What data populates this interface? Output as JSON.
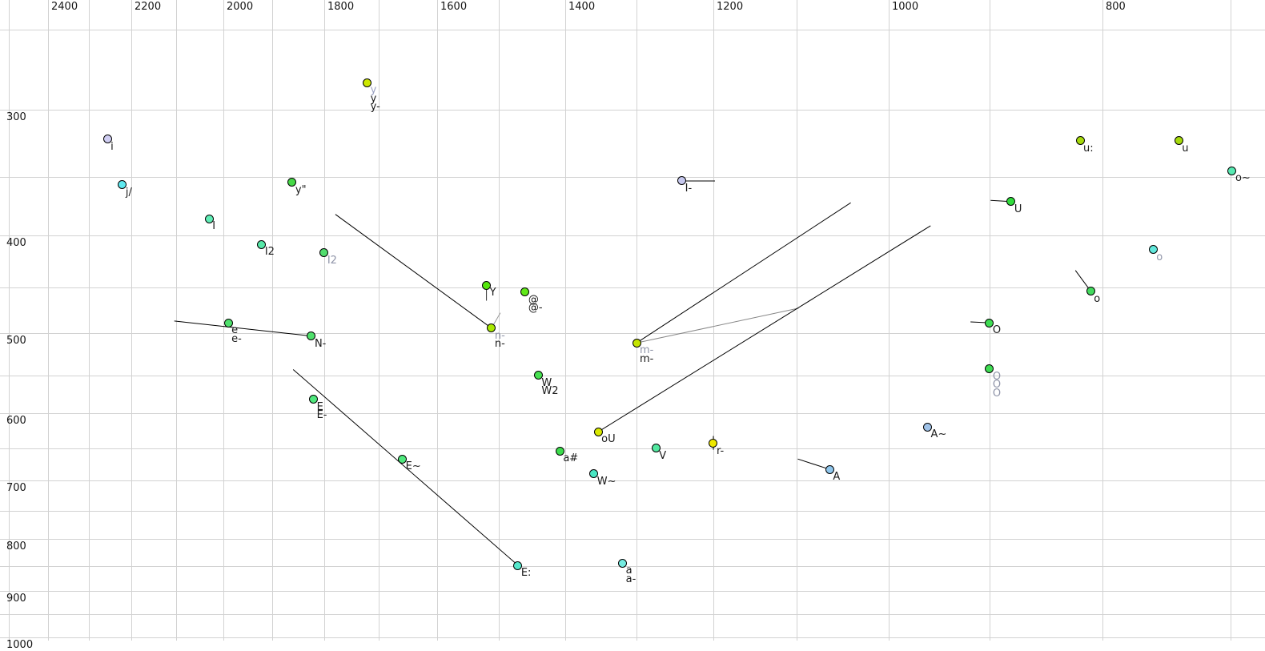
{
  "chart_data": {
    "type": "scatter",
    "title": "",
    "xlabel": "",
    "ylabel": "",
    "x_axis": {
      "ticks": [
        2400,
        2200,
        2000,
        1800,
        1600,
        1400,
        1200,
        1000,
        800
      ],
      "scale": "log",
      "reversed": true,
      "grid_from": 2500,
      "grid_to": 700,
      "grid_step": 100
    },
    "y_axis": {
      "ticks": [
        300,
        400,
        500,
        600,
        700,
        800,
        900,
        1000
      ],
      "scale": "log",
      "reversed": true,
      "grid_from": 250,
      "grid_to": 1000,
      "grid_step": 50
    },
    "grid_color": "#d2d2d2",
    "points": [
      {
        "id": "y",
        "f2": 1721,
        "f1": 282,
        "fill": "#cde800",
        "labels": [
          {
            "text": "y",
            "color": "#9aa0c0"
          },
          {
            "text": "y",
            "color": "#1a1a1a"
          },
          {
            "text": "y-",
            "color": "#1a1a1a"
          }
        ]
      },
      {
        "id": "i",
        "f2": 2256,
        "f1": 321,
        "fill": "#cfcdf2",
        "labels": [
          {
            "text": "i",
            "color": "#1a1a1a"
          }
        ]
      },
      {
        "id": "j/",
        "f2": 2221,
        "f1": 356,
        "fill": "#5fe9ef",
        "labels": [
          {
            "text": "j/",
            "color": "#1a1a1a"
          }
        ]
      },
      {
        "id": "y\"",
        "f2": 1861,
        "f1": 354,
        "fill": "#46d947",
        "labels": [
          {
            "text": "y\"",
            "color": "#1a1a1a"
          }
        ]
      },
      {
        "id": "I",
        "f2": 2029,
        "f1": 385,
        "fill": "#60edb6",
        "labels": [
          {
            "text": "I",
            "color": "#1a1a1a"
          }
        ]
      },
      {
        "id": "I2",
        "f2": 1921,
        "f1": 408,
        "fill": "#57e8a8",
        "labels": [
          {
            "text": "I2",
            "color": "#1a1a1a"
          }
        ]
      },
      {
        "id": "I2-2",
        "f2": 1800,
        "f1": 416,
        "fill": "#52dd6e",
        "labels": [
          {
            "text": "I2",
            "color": "#8f94a8"
          }
        ]
      },
      {
        "id": "e",
        "f2": 1989,
        "f1": 488,
        "fill": "#4fe06c",
        "labels": [
          {
            "text": "e",
            "color": "#1a1a1a"
          },
          {
            "text": "e-",
            "color": "#1a1a1a"
          }
        ]
      },
      {
        "id": "N-",
        "f2": 1824,
        "f1": 503,
        "fill": "#4fe06c",
        "labels": [
          {
            "text": "N-",
            "color": "#1a1a1a"
          }
        ]
      },
      {
        "id": "Y",
        "f2": 1520,
        "f1": 448,
        "fill": "#55e80c",
        "labels": [
          {
            "text": "Y",
            "color": "#1a1a1a"
          }
        ]
      },
      {
        "id": "@",
        "f2": 1460,
        "f1": 455,
        "fill": "#60e818",
        "labels": [
          {
            "text": "@",
            "color": "#1a1a1a"
          },
          {
            "text": "@-",
            "color": "#1a1a1a"
          }
        ]
      },
      {
        "id": "n-",
        "f2": 1512,
        "f1": 494,
        "fill": "#a8e800",
        "labels": [
          {
            "text": "n-",
            "color": "#8f94a8"
          },
          {
            "text": "n-",
            "color": "#1a1a1a"
          }
        ]
      },
      {
        "id": "I-",
        "f2": 1240,
        "f1": 353,
        "fill": "#c6c8ee",
        "labels": [
          {
            "text": "I-",
            "color": "#1a1a1a"
          }
        ]
      },
      {
        "id": "m-",
        "f2": 1300,
        "f1": 511,
        "fill": "#c4e400",
        "labels": [
          {
            "text": "m-",
            "color": "#8f94a8"
          },
          {
            "text": "m-",
            "color": "#1a1a1a"
          }
        ]
      },
      {
        "id": "W",
        "f2": 1440,
        "f1": 550,
        "fill": "#46e050",
        "labels": [
          {
            "text": "W",
            "color": "#1a1a1a"
          },
          {
            "text": "W2",
            "color": "#1a1a1a"
          }
        ]
      },
      {
        "id": "oU",
        "f2": 1353,
        "f1": 626,
        "fill": "#d8e800",
        "labels": [
          {
            "text": "oU",
            "color": "#1a1a1a"
          }
        ]
      },
      {
        "id": "a#",
        "f2": 1408,
        "f1": 654,
        "fill": "#3cdc4c",
        "labels": [
          {
            "text": "a#",
            "color": "#1a1a1a"
          }
        ]
      },
      {
        "id": "W~",
        "f2": 1359,
        "f1": 689,
        "fill": "#49e6c3",
        "labels": [
          {
            "text": "W~",
            "color": "#1a1a1a"
          }
        ]
      },
      {
        "id": "V",
        "f2": 1274,
        "f1": 650,
        "fill": "#52e8a0",
        "labels": [
          {
            "text": "V",
            "color": "#1a1a1a"
          }
        ]
      },
      {
        "id": "r-",
        "f2": 1200,
        "f1": 643,
        "fill": "#eee800",
        "labels": [
          {
            "text": "r-",
            "color": "#1a1a1a"
          }
        ]
      },
      {
        "id": "A",
        "f2": 1063,
        "f1": 682,
        "fill": "#8fc6ec",
        "labels": [
          {
            "text": "A",
            "color": "#1a1a1a"
          }
        ]
      },
      {
        "id": "A~",
        "f2": 960,
        "f1": 619,
        "fill": "#9fc2e8",
        "labels": [
          {
            "text": "A~",
            "color": "#1a1a1a"
          }
        ]
      },
      {
        "id": "E",
        "f2": 1820,
        "f1": 581,
        "fill": "#4fe87d",
        "labels": [
          {
            "text": "E",
            "color": "#1a1a1a"
          },
          {
            "text": "E-",
            "color": "#1a1a1a"
          }
        ]
      },
      {
        "id": "E~",
        "f2": 1659,
        "f1": 666,
        "fill": "#4fe87d",
        "labels": [
          {
            "text": "E~",
            "color": "#1a1a1a"
          }
        ]
      },
      {
        "id": "E:",
        "f2": 1471,
        "f1": 849,
        "fill": "#55e8cc",
        "labels": [
          {
            "text": "E:",
            "color": "#1a1a1a"
          }
        ]
      },
      {
        "id": "a",
        "f2": 1319,
        "f1": 845,
        "fill": "#74ebe0",
        "labels": [
          {
            "text": "a",
            "color": "#1a1a1a"
          },
          {
            "text": "a-",
            "color": "#1a1a1a"
          }
        ]
      },
      {
        "id": "u:",
        "f2": 819,
        "f1": 322,
        "fill": "#a6da0c",
        "labels": [
          {
            "text": "u:",
            "color": "#1a1a1a"
          }
        ]
      },
      {
        "id": "u",
        "f2": 739,
        "f1": 322,
        "fill": "#a6da0c",
        "labels": [
          {
            "text": "u",
            "color": "#1a1a1a"
          }
        ]
      },
      {
        "id": "o~",
        "f2": 699,
        "f1": 345,
        "fill": "#57e9b2",
        "labels": [
          {
            "text": "o~",
            "color": "#1a1a1a"
          }
        ]
      },
      {
        "id": "U",
        "f2": 880,
        "f1": 370,
        "fill": "#30dc3c",
        "labels": [
          {
            "text": "U",
            "color": "#1a1a1a"
          }
        ]
      },
      {
        "id": "o-2",
        "f2": 759,
        "f1": 413,
        "fill": "#62e8dc",
        "labels": [
          {
            "text": "o",
            "color": "#8f94a8"
          }
        ]
      },
      {
        "id": "o",
        "f2": 810,
        "f1": 454,
        "fill": "#43da5e",
        "labels": [
          {
            "text": "o",
            "color": "#1a1a1a"
          }
        ]
      },
      {
        "id": "O",
        "f2": 900,
        "f1": 488,
        "fill": "#3edc52",
        "labels": [
          {
            "text": "O",
            "color": "#1a1a1a"
          }
        ]
      },
      {
        "id": "O-2",
        "f2": 900,
        "f1": 542,
        "fill": "#3edc52",
        "labels": [
          {
            "text": "O",
            "color": "#8f94a8"
          },
          {
            "text": "O",
            "color": "#8f94a8"
          },
          {
            "text": "O",
            "color": "#8f94a8"
          }
        ]
      }
    ],
    "segments": [
      {
        "f2a": 2104,
        "f1a": 486,
        "f2b": 1824,
        "f1b": 503,
        "color": "#000000"
      },
      {
        "f2a": 1779,
        "f1a": 381,
        "f2b": 1512,
        "f1b": 494,
        "color": "#000000"
      },
      {
        "f2a": 1520,
        "f1a": 450,
        "f2b": 1520,
        "f1b": 464,
        "color": "#333333"
      },
      {
        "f2a": 1512,
        "f1a": 494,
        "f2b": 1498,
        "f1b": 477,
        "color": "#999999"
      },
      {
        "f2a": 1240,
        "f1a": 353,
        "f2b": 1198,
        "f1b": 353,
        "color": "#000000"
      },
      {
        "f2a": 1300,
        "f1a": 511,
        "f2b": 1040,
        "f1b": 371,
        "color": "#000000"
      },
      {
        "f2a": 1300,
        "f1a": 511,
        "f2b": 1098,
        "f1b": 472,
        "color": "#888888"
      },
      {
        "f2a": 1353,
        "f1a": 626,
        "f2b": 957,
        "f1b": 391,
        "color": "#000000"
      },
      {
        "f2a": 1859,
        "f1a": 543,
        "f2b": 1471,
        "f1b": 849,
        "color": "#000000"
      },
      {
        "f2a": 1099,
        "f1a": 666,
        "f2b": 1063,
        "f1b": 682,
        "color": "#000000"
      },
      {
        "f2a": 1200,
        "f1a": 632,
        "f2b": 1200,
        "f1b": 652,
        "color": "#000000"
      },
      {
        "f2a": 899,
        "f1a": 369,
        "f2b": 880,
        "f1b": 370,
        "color": "#000000"
      },
      {
        "f2a": 823,
        "f1a": 433,
        "f2b": 810,
        "f1b": 454,
        "color": "#000000"
      },
      {
        "f2a": 918,
        "f1a": 487,
        "f2b": 900,
        "f1b": 488,
        "color": "#000000"
      }
    ]
  }
}
